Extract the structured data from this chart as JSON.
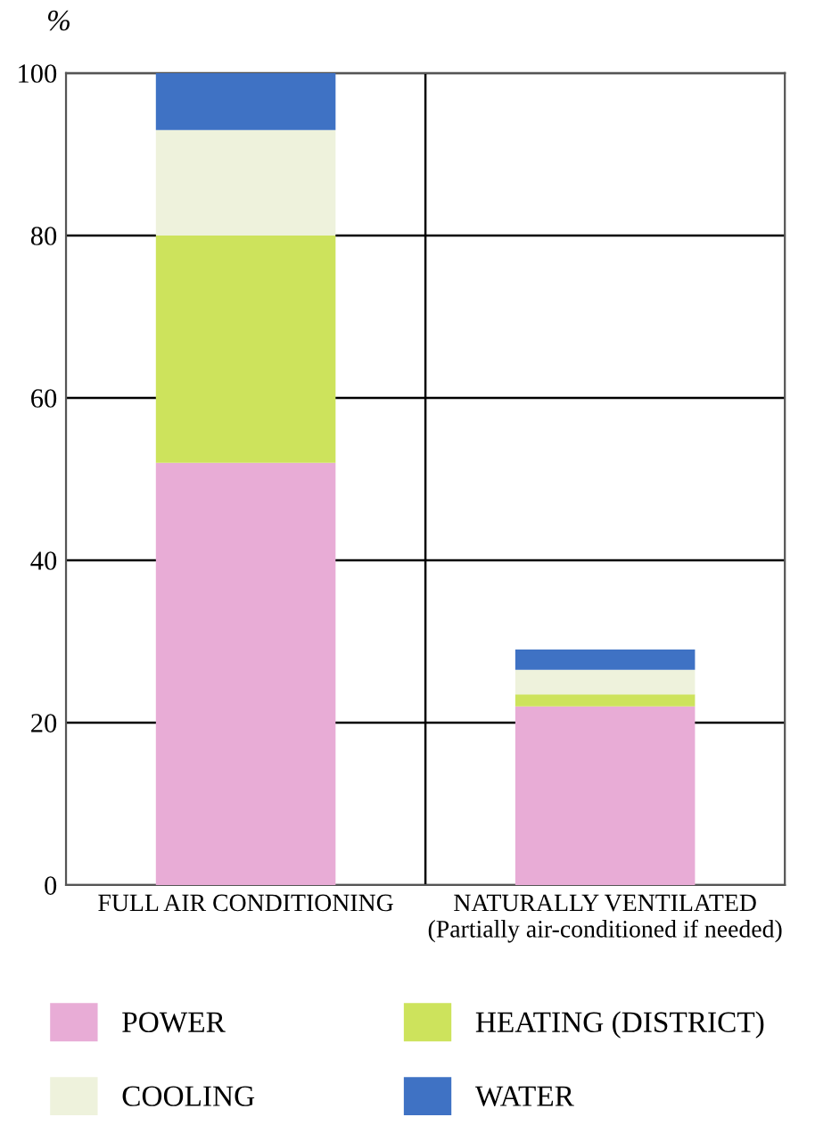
{
  "chart_data": {
    "type": "bar",
    "stacked": true,
    "ylabel": "%",
    "categories": [
      "FULL AIR CONDITIONING",
      "NATURALLY VENTILATED\n(Partially air-conditioned if needed)"
    ],
    "series": [
      {
        "name": "POWER",
        "color": "#e8acd6",
        "values": [
          52,
          22
        ]
      },
      {
        "name": "HEATING (DISTRICT)",
        "color": "#cde35c",
        "values": [
          28,
          1.5
        ]
      },
      {
        "name": "COOLING",
        "color": "#eef2dc",
        "values": [
          13,
          3
        ]
      },
      {
        "name": "WATER",
        "color": "#3f72c4",
        "values": [
          7,
          2.5
        ]
      }
    ],
    "ylim": [
      0,
      100
    ],
    "yticks": [
      0,
      20,
      40,
      60,
      80,
      100
    ],
    "grid": true,
    "legend": "bottom"
  }
}
